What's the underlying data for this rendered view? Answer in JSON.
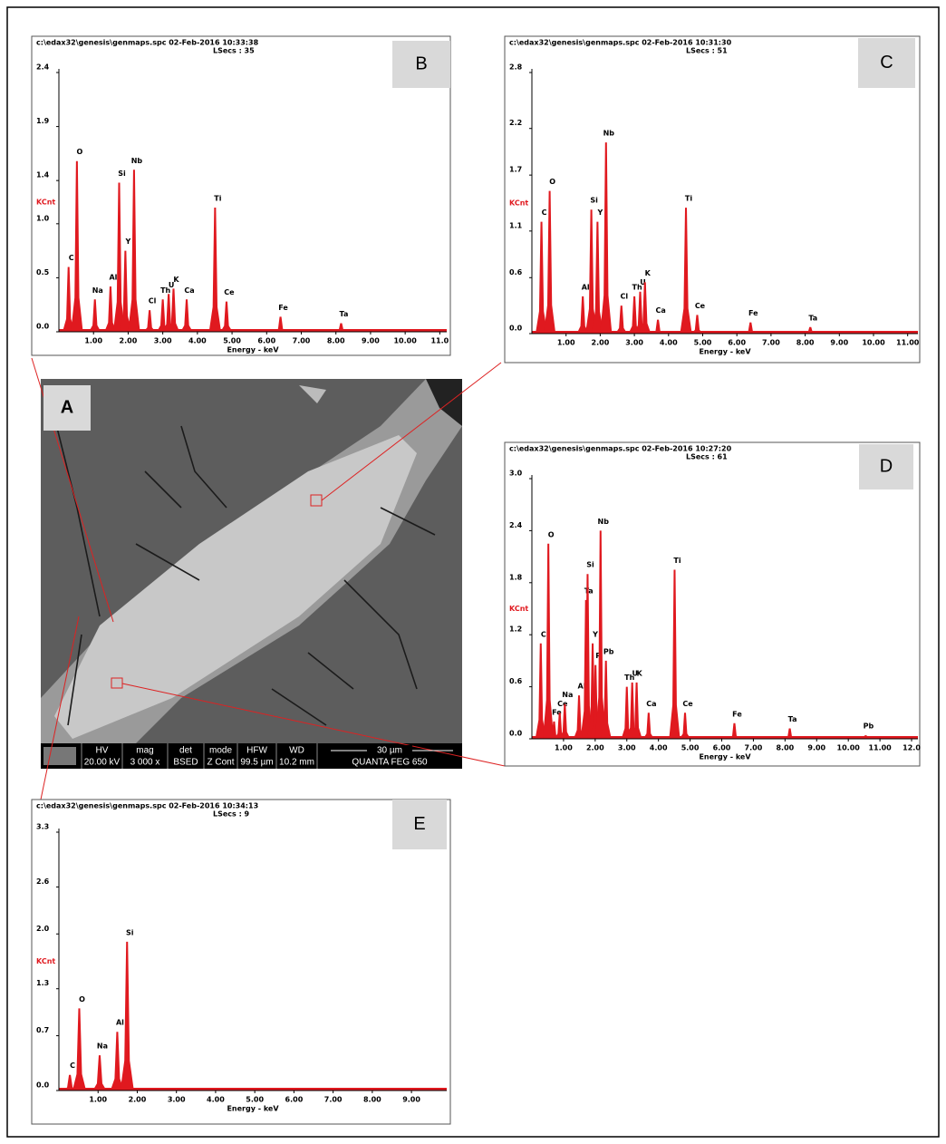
{
  "chart_data": [
    {
      "type": "spectrum",
      "panel_label": "B",
      "header": "c:\\edax32\\genesis\\genmaps.spc  02-Feb-2016 10:33:38",
      "lsecs": "LSecs : 35",
      "y_label": "KCnt",
      "x_label": "Energy - keV",
      "color": "#e0191f",
      "xlim": [
        0,
        11.2
      ],
      "xticks": [
        {
          "value": 1,
          "label": "1.00"
        },
        {
          "value": 2,
          "label": "2.00"
        },
        {
          "value": 3,
          "label": "3.00"
        },
        {
          "value": 4,
          "label": "4.00"
        },
        {
          "value": 5,
          "label": "5.00"
        },
        {
          "value": 6,
          "label": "6.00"
        },
        {
          "value": 7,
          "label": "7.00"
        },
        {
          "value": 8,
          "label": "8.00"
        },
        {
          "value": 9,
          "label": "9.00"
        },
        {
          "value": 10,
          "label": "10.00"
        },
        {
          "value": 11,
          "label": "11.0"
        }
      ],
      "ylim": [
        0,
        2.4
      ],
      "yticks": [
        {
          "value": 0,
          "label": "0.0"
        },
        0.5,
        {
          "value": 1,
          "label": "1.0"
        },
        1.4,
        1.9,
        2.4
      ],
      "peaks": [
        {
          "label": "C",
          "x": 0.28,
          "y": 0.6
        },
        {
          "label": "O",
          "x": 0.52,
          "y": 1.58
        },
        {
          "label": "Na",
          "x": 1.04,
          "y": 0.3
        },
        {
          "label": "Al",
          "x": 1.49,
          "y": 0.42
        },
        {
          "label": "Si",
          "x": 1.74,
          "y": 1.38
        },
        {
          "label": "Y",
          "x": 1.92,
          "y": 0.75
        },
        {
          "label": "Nb",
          "x": 2.17,
          "y": 1.5
        },
        {
          "label": "Cl",
          "x": 2.62,
          "y": 0.2
        },
        {
          "label": "Th",
          "x": 3.0,
          "y": 0.3
        },
        {
          "label": "U",
          "x": 3.17,
          "y": 0.35
        },
        {
          "label": "K",
          "x": 3.31,
          "y": 0.4
        },
        {
          "label": "Ca",
          "x": 3.69,
          "y": 0.3
        },
        {
          "label": "Ti",
          "x": 4.51,
          "y": 1.15
        },
        {
          "label": "Ce",
          "x": 4.84,
          "y": 0.28
        },
        {
          "label": "Fe",
          "x": 6.4,
          "y": 0.14
        },
        {
          "label": "Ta",
          "x": 8.15,
          "y": 0.08
        }
      ]
    },
    {
      "type": "spectrum",
      "panel_label": "C",
      "header": "c:\\edax32\\genesis\\genmaps.spc  02-Feb-2016 10:31:30",
      "lsecs": "LSecs : 51",
      "y_label": "KCnt",
      "x_label": "Energy - keV",
      "color": "#e0191f",
      "xlim": [
        0,
        11.3
      ],
      "xticks": [
        {
          "value": 1,
          "label": "1.00"
        },
        {
          "value": 2,
          "label": "2.00"
        },
        {
          "value": 3,
          "label": "3.00"
        },
        {
          "value": 4,
          "label": "4.00"
        },
        {
          "value": 5,
          "label": "5.00"
        },
        {
          "value": 6,
          "label": "6.00"
        },
        {
          "value": 7,
          "label": "7.00"
        },
        {
          "value": 8,
          "label": "8.00"
        },
        {
          "value": 9,
          "label": "9.00"
        },
        {
          "value": 10,
          "label": "10.00"
        },
        {
          "value": 11,
          "label": "11.00"
        }
      ],
      "ylim": [
        0,
        2.8
      ],
      "yticks": [
        {
          "value": 0,
          "label": "0.0"
        },
        0.6,
        1.1,
        1.7,
        2.2,
        2.8
      ],
      "peaks": [
        {
          "label": "C",
          "x": 0.28,
          "y": 1.2
        },
        {
          "label": "O",
          "x": 0.52,
          "y": 1.53
        },
        {
          "label": "Al",
          "x": 1.49,
          "y": 0.4
        },
        {
          "label": "Si",
          "x": 1.74,
          "y": 1.33
        },
        {
          "label": "Y",
          "x": 1.92,
          "y": 1.2
        },
        {
          "label": "Nb",
          "x": 2.17,
          "y": 2.05
        },
        {
          "label": "Cl",
          "x": 2.62,
          "y": 0.3
        },
        {
          "label": "Th",
          "x": 3.0,
          "y": 0.4
        },
        {
          "label": "U",
          "x": 3.17,
          "y": 0.45
        },
        {
          "label": "K",
          "x": 3.31,
          "y": 0.55
        },
        {
          "label": "Ca",
          "x": 3.69,
          "y": 0.15
        },
        {
          "label": "Ti",
          "x": 4.51,
          "y": 1.35
        },
        {
          "label": "Ce",
          "x": 4.84,
          "y": 0.2
        },
        {
          "label": "Fe",
          "x": 6.4,
          "y": 0.12
        },
        {
          "label": "Ta",
          "x": 8.15,
          "y": 0.07
        }
      ]
    },
    {
      "type": "spectrum",
      "panel_label": "D",
      "header": "c:\\edax32\\genesis\\genmaps.spc  02-Feb-2016 10:27:20",
      "lsecs": "LSecs : 61",
      "y_label": "KCnt",
      "x_label": "Energy - keV",
      "color": "#e0191f",
      "xlim": [
        0,
        12.2
      ],
      "xticks": [
        {
          "value": 1,
          "label": "1.00"
        },
        {
          "value": 2,
          "label": "2.00"
        },
        {
          "value": 3,
          "label": "3.00"
        },
        {
          "value": 4,
          "label": "4.00"
        },
        {
          "value": 5,
          "label": "5.00"
        },
        {
          "value": 6,
          "label": "6.00"
        },
        {
          "value": 7,
          "label": "7.00"
        },
        {
          "value": 8,
          "label": "8.00"
        },
        {
          "value": 9,
          "label": "9.00"
        },
        {
          "value": 10,
          "label": "10.00"
        },
        {
          "value": 11,
          "label": "11.00"
        },
        {
          "value": 12,
          "label": "12.0"
        }
      ],
      "ylim": [
        0,
        3.0
      ],
      "yticks": [
        {
          "value": 0,
          "label": "0.0"
        },
        0.6,
        1.2,
        1.8,
        2.4,
        {
          "value": 3,
          "label": "3.0"
        }
      ],
      "peaks": [
        {
          "label": "C",
          "x": 0.28,
          "y": 1.1
        },
        {
          "label": "O",
          "x": 0.52,
          "y": 2.25
        },
        {
          "label": "Fe",
          "x": 0.7,
          "y": 0.2
        },
        {
          "label": "Ce",
          "x": 0.88,
          "y": 0.3
        },
        {
          "label": "Na",
          "x": 1.04,
          "y": 0.4
        },
        {
          "label": "Al",
          "x": 1.49,
          "y": 0.5
        },
        {
          "label": "Ta",
          "x": 1.71,
          "y": 1.6
        },
        {
          "label": "Si",
          "x": 1.76,
          "y": 1.9
        },
        {
          "label": "Y",
          "x": 1.92,
          "y": 1.1
        },
        {
          "label": "P",
          "x": 2.01,
          "y": 0.85
        },
        {
          "label": "Nb",
          "x": 2.17,
          "y": 2.4
        },
        {
          "label": "Pb",
          "x": 2.34,
          "y": 0.9
        },
        {
          "label": "Th",
          "x": 3.0,
          "y": 0.6
        },
        {
          "label": "U",
          "x": 3.17,
          "y": 0.65
        },
        {
          "label": "K",
          "x": 3.31,
          "y": 0.65
        },
        {
          "label": "Ca",
          "x": 3.69,
          "y": 0.3
        },
        {
          "label": "Ti",
          "x": 4.51,
          "y": 1.95
        },
        {
          "label": "Ce",
          "x": 4.84,
          "y": 0.3
        },
        {
          "label": "Fe",
          "x": 6.4,
          "y": 0.18
        },
        {
          "label": "Ta",
          "x": 8.15,
          "y": 0.12
        },
        {
          "label": "Pb",
          "x": 10.55,
          "y": 0.04
        }
      ]
    },
    {
      "type": "spectrum",
      "panel_label": "E",
      "header": "c:\\edax32\\genesis\\genmaps.spc  02-Feb-2016 10:34:13",
      "lsecs": "LSecs : 9",
      "y_label": "KCnt",
      "x_label": "Energy - keV",
      "color": "#e0191f",
      "xlim": [
        0,
        9.9
      ],
      "xticks": [
        {
          "value": 1,
          "label": "1.00"
        },
        {
          "value": 2,
          "label": "2.00"
        },
        {
          "value": 3,
          "label": "3.00"
        },
        {
          "value": 4,
          "label": "4.00"
        },
        {
          "value": 5,
          "label": "5.00"
        },
        {
          "value": 6,
          "label": "6.00"
        },
        {
          "value": 7,
          "label": "7.00"
        },
        {
          "value": 8,
          "label": "8.00"
        },
        {
          "value": 9,
          "label": "9.00"
        }
      ],
      "ylim": [
        0,
        3.3
      ],
      "yticks": [
        {
          "value": 0,
          "label": "0.0"
        },
        0.7,
        1.3,
        {
          "value": 2,
          "label": "2.0"
        },
        2.6,
        3.3
      ],
      "peaks": [
        {
          "label": "C",
          "x": 0.28,
          "y": 0.2
        },
        {
          "label": "O",
          "x": 0.52,
          "y": 1.05
        },
        {
          "label": "Na",
          "x": 1.04,
          "y": 0.45
        },
        {
          "label": "Al",
          "x": 1.49,
          "y": 0.75
        },
        {
          "label": "Si",
          "x": 1.74,
          "y": 1.9
        }
      ]
    }
  ],
  "image": {
    "panel_label": "A",
    "info": [
      {
        "head": "HV",
        "value": "20.00 kV"
      },
      {
        "head": "mag",
        "value": "3 000 x"
      },
      {
        "head": "det",
        "value": "BSED"
      },
      {
        "head": "mode",
        "value": "Z Cont"
      },
      {
        "head": "HFW",
        "value": "99.5 µm"
      },
      {
        "head": "WD",
        "value": "10.2 mm"
      }
    ],
    "scale": "30 µm",
    "instrument": "QUANTA FEG 650"
  }
}
